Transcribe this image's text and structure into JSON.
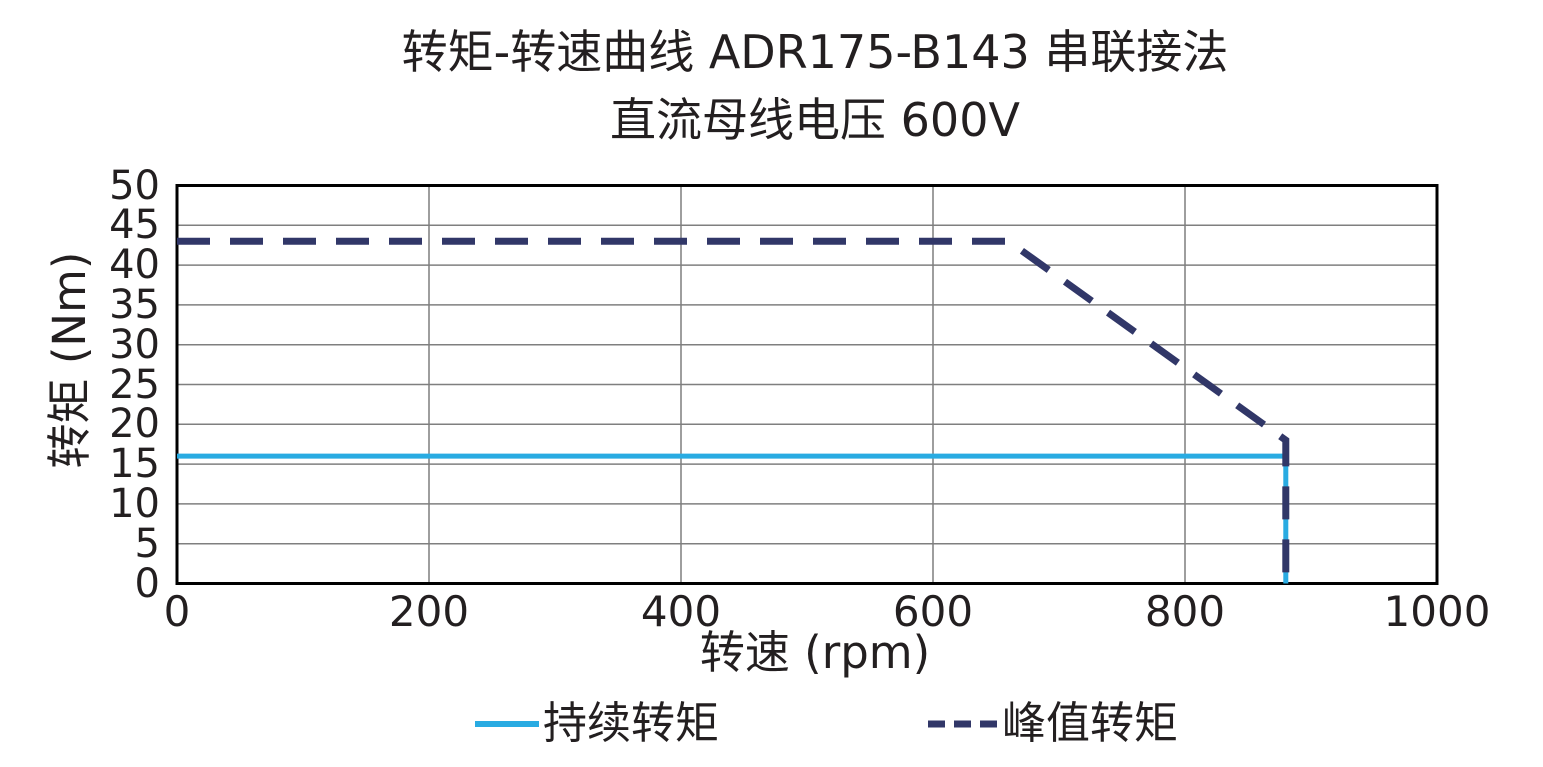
{
  "page": {
    "background": "#ffffff"
  },
  "chart_data": {
    "type": "line",
    "title": "转矩-转速曲线 ADR175-B143 串联接法",
    "subtitle": "直流母线电压 600V",
    "xlabel": "转速 (rpm)",
    "ylabel": "转矩 (Nm)",
    "xlim": [
      0,
      1000
    ],
    "ylim": [
      0,
      50
    ],
    "x_ticks": [
      0,
      200,
      400,
      600,
      800,
      1000
    ],
    "y_ticks": [
      0,
      5,
      10,
      15,
      20,
      25,
      30,
      35,
      40,
      45,
      50
    ],
    "grid": true,
    "legend_position": "bottom",
    "colors": {
      "grid": "#7f7f7f",
      "axis": "#000000",
      "text": "#231f20"
    },
    "series": [
      {
        "name": "持续转矩",
        "style": "solid",
        "color": "#29ABE2",
        "points": [
          [
            0,
            16
          ],
          [
            880,
            16
          ],
          [
            880,
            0
          ]
        ]
      },
      {
        "name": "峰值转矩",
        "style": "dashed",
        "color": "#313768",
        "points": [
          [
            0,
            43
          ],
          [
            660,
            43
          ],
          [
            880,
            18
          ],
          [
            880,
            0
          ]
        ]
      }
    ]
  }
}
